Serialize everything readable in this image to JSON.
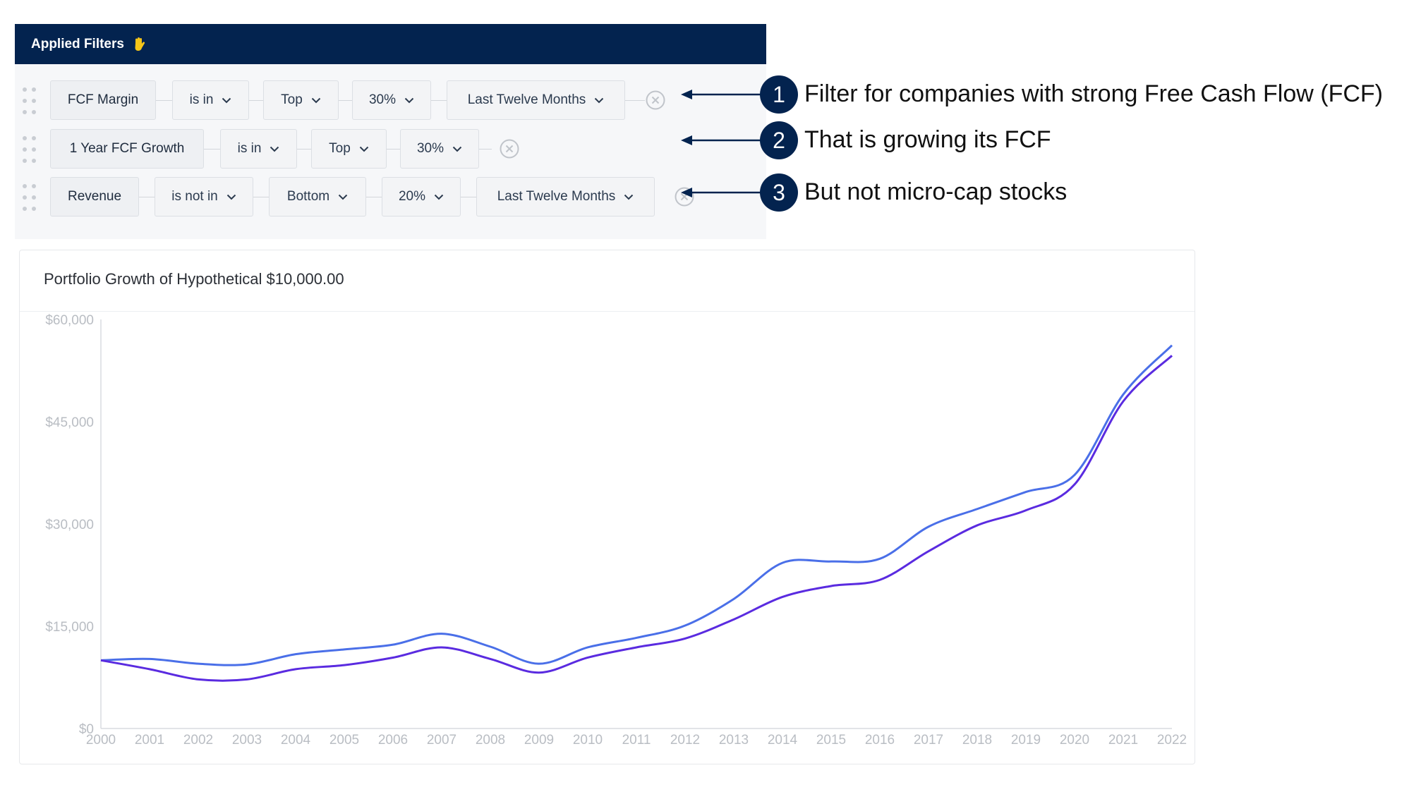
{
  "filters": {
    "header_label": "Applied Filters",
    "header_icon": "hand-icon",
    "rows": [
      {
        "field": "FCF Margin",
        "operator": "is in",
        "direction": "Top",
        "percent": "30%",
        "period": "Last Twelve Months"
      },
      {
        "field": "1 Year FCF Growth",
        "operator": "is in",
        "direction": "Top",
        "percent": "30%"
      },
      {
        "field": "Revenue",
        "operator": "is not in",
        "direction": "Bottom",
        "percent": "20%",
        "period": "Last Twelve Months"
      }
    ]
  },
  "annotations": [
    {
      "number": "1",
      "text": "Filter for companies with strong Free Cash Flow (FCF)"
    },
    {
      "number": "2",
      "text": "That is growing its FCF"
    },
    {
      "number": "3",
      "text": "But not micro-cap stocks"
    }
  ],
  "colors": {
    "header_bg": "#03234f",
    "badge_bg": "#03234f",
    "series_1": "#4a6fe8",
    "series_2": "#5a2be0"
  },
  "chart_data": {
    "type": "line",
    "title": "Portfolio Growth of Hypothetical $10,000.00",
    "x": [
      "2000",
      "2001",
      "2002",
      "2003",
      "2004",
      "2005",
      "2006",
      "2007",
      "2008",
      "2009",
      "2010",
      "2011",
      "2012",
      "2013",
      "2014",
      "2015",
      "2016",
      "2017",
      "2018",
      "2019",
      "2020",
      "2021",
      "2022"
    ],
    "y_ticks": [
      "$0",
      "$15,000",
      "$30,000",
      "$45,000",
      "$60,000"
    ],
    "ylim": [
      0,
      60000
    ],
    "grid": false,
    "series": [
      {
        "color": "#4a6fe8",
        "values": [
          10000,
          10200,
          9500,
          9400,
          10900,
          11600,
          12300,
          13900,
          12000,
          9500,
          11900,
          13300,
          15100,
          19000,
          24300,
          24500,
          24900,
          29600,
          32200,
          34700,
          37200,
          49000,
          56200
        ]
      },
      {
        "color": "#5a2be0",
        "values": [
          10000,
          8700,
          7200,
          7200,
          8700,
          9300,
          10400,
          11900,
          10200,
          8200,
          10400,
          11900,
          13200,
          16000,
          19300,
          20900,
          21800,
          26000,
          29800,
          32000,
          35800,
          48000,
          54700
        ]
      }
    ]
  }
}
